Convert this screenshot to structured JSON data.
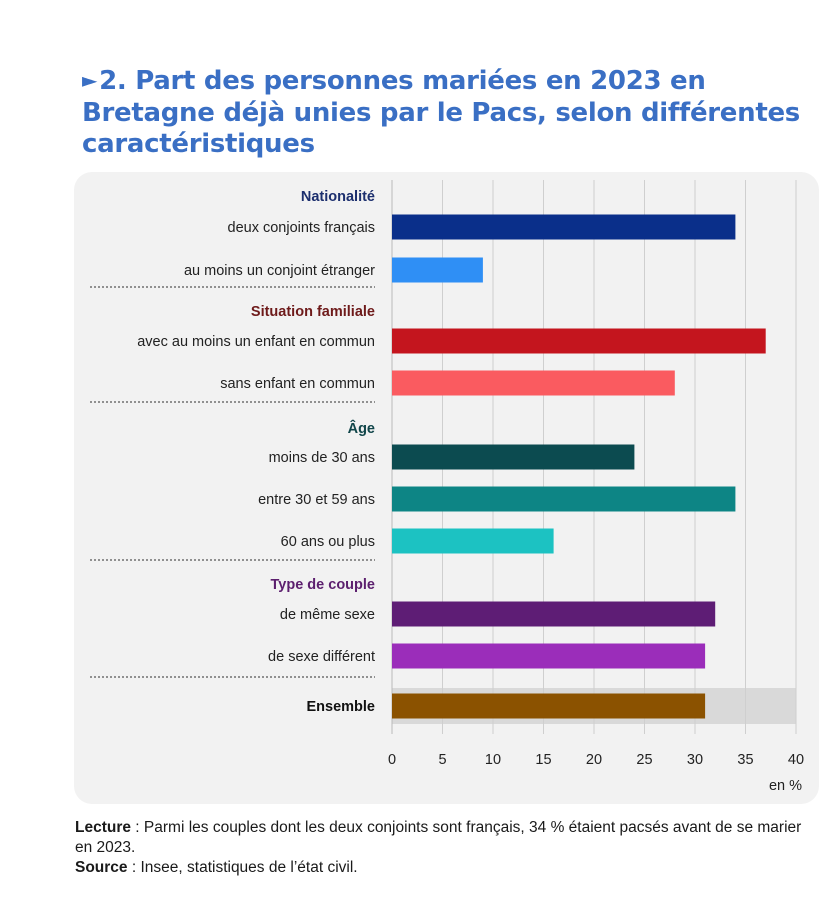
{
  "title": {
    "marker": "►",
    "text": "2. Part des personnes mariées en 2023 en Bretagne déjà unies par le Pacs, selon différentes caractéristiques"
  },
  "chart_data": {
    "type": "bar",
    "orientation": "horizontal",
    "title": "2. Part des personnes mariées en 2023 en Bretagne déjà unies par le Pacs, selon différentes caractéristiques",
    "xlabel": "en %",
    "xlim": [
      0,
      40
    ],
    "xticks": [
      "0",
      "5",
      "10",
      "15",
      "20",
      "25",
      "30",
      "35",
      "40"
    ],
    "grid": true,
    "groups": [
      {
        "name": "Nationalité",
        "color": "#1c2f6e",
        "bars": [
          {
            "label": "deux conjoints français",
            "value": 34,
            "color": "#0a2f8a"
          },
          {
            "label": "au moins un conjoint étranger",
            "value": 9,
            "color": "#2f8ff5"
          }
        ]
      },
      {
        "name": "Situation familiale",
        "color": "#6e1a1a",
        "bars": [
          {
            "label": "avec au moins un enfant en commun",
            "value": 37,
            "color": "#c4151e"
          },
          {
            "label": "sans enfant en commun",
            "value": 28,
            "color": "#fa5b60"
          }
        ]
      },
      {
        "name": "Âge",
        "color": "#11464a",
        "bars": [
          {
            "label": "moins de 30 ans",
            "value": 24,
            "color": "#0c4b50"
          },
          {
            "label": "entre 30 et 59 ans",
            "value": 34,
            "color": "#0d8585"
          },
          {
            "label": "60 ans ou plus",
            "value": 16,
            "color": "#1cc2c2"
          }
        ]
      },
      {
        "name": "Type de couple",
        "color": "#5c1f6e",
        "bars": [
          {
            "label": "de même sexe",
            "value": 32,
            "color": "#5e1d75"
          },
          {
            "label": "de sexe différent",
            "value": 31,
            "color": "#9b2dba"
          }
        ]
      }
    ],
    "total": {
      "label": "Ensemble",
      "value": 31,
      "color": "#8b5200"
    }
  },
  "footer": {
    "lecture_label": "Lecture",
    "lecture_text": " : Parmi les couples dont les deux conjoints sont français, 34 % étaient pacsés avant de se marier en 2023.",
    "source_label": "Source",
    "source_text": " : Insee, statistiques de l’état civil."
  }
}
